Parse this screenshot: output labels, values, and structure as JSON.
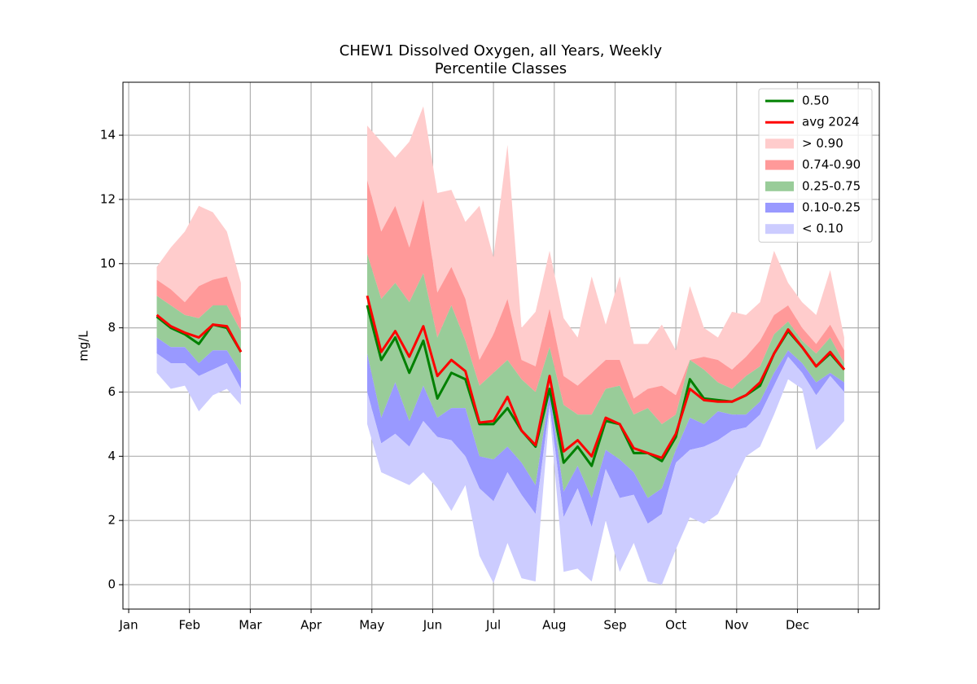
{
  "chart_data": {
    "type": "band-line",
    "title": "CHEW1 Dissolved Oxygen, all Years, Weekly",
    "subtitle": "Percentile Classes",
    "y_label": "mg/L",
    "x": [
      2,
      3,
      4,
      5,
      6,
      7,
      8,
      9,
      10,
      11,
      12,
      13,
      14,
      15,
      16,
      17,
      18,
      19,
      20,
      21,
      22,
      23,
      24,
      25,
      26,
      27,
      28,
      29,
      30,
      31,
      32,
      33,
      34,
      35,
      36,
      37,
      38,
      39,
      40,
      41,
      42,
      43,
      44,
      45,
      46,
      47,
      48,
      49,
      50,
      51
    ],
    "xlim": [
      -0.41,
      53.5
    ],
    "xticks": [
      {
        "value": 0,
        "label": "Jan"
      },
      {
        "value": 4.333,
        "label": "Feb"
      },
      {
        "value": 8.667,
        "label": "Mar"
      },
      {
        "value": 13,
        "label": "Apr"
      },
      {
        "value": 17.333,
        "label": "May"
      },
      {
        "value": 21.667,
        "label": "Jun"
      },
      {
        "value": 26,
        "label": "Jul"
      },
      {
        "value": 30.333,
        "label": "Aug"
      },
      {
        "value": 34.667,
        "label": "Sep"
      },
      {
        "value": 39,
        "label": "Oct"
      },
      {
        "value": 43.333,
        "label": "Nov"
      },
      {
        "value": 47.667,
        "label": "Dec"
      },
      {
        "value": 52,
        "label": null
      }
    ],
    "ylim": [
      -0.76,
      15.65
    ],
    "yticks": [
      0,
      2,
      4,
      6,
      8,
      10,
      12,
      14
    ],
    "grid": true,
    "legend": "upper right",
    "series": [
      {
        "name": "0.50",
        "color": "#008000",
        "values": [
          8.35,
          8.0,
          7.8,
          7.5,
          8.1,
          8.0,
          7.25,
          null,
          null,
          null,
          null,
          null,
          null,
          null,
          null,
          8.7,
          7.0,
          7.7,
          6.6,
          7.6,
          5.8,
          6.6,
          6.4,
          5.0,
          5.0,
          5.5,
          4.8,
          4.3,
          6.1,
          3.8,
          4.3,
          3.7,
          5.1,
          5.0,
          4.1,
          4.1,
          3.85,
          4.6,
          6.4,
          5.8,
          5.75,
          5.7,
          5.9,
          6.2,
          7.2,
          7.9,
          7.4,
          6.8,
          7.2,
          6.7
        ]
      },
      {
        "name": "avg 2024",
        "color": "#ff0000",
        "values": [
          8.4,
          8.05,
          7.85,
          7.7,
          8.1,
          8.05,
          7.25,
          null,
          null,
          null,
          null,
          null,
          null,
          null,
          null,
          9.0,
          7.25,
          7.9,
          7.1,
          8.05,
          6.5,
          7.0,
          6.65,
          5.05,
          5.1,
          5.85,
          4.8,
          4.35,
          6.5,
          4.15,
          4.5,
          4.0,
          5.2,
          5.0,
          4.25,
          4.1,
          3.95,
          4.7,
          6.1,
          5.75,
          5.7,
          5.7,
          5.9,
          6.3,
          7.2,
          7.95,
          7.4,
          6.8,
          7.25,
          6.7
        ]
      }
    ],
    "bands": [
      {
        "name": "> 0.90",
        "color": "#ffcccc",
        "low": [
          9.5,
          9.2,
          8.8,
          9.3,
          9.5,
          9.6,
          8.3,
          null,
          null,
          null,
          null,
          null,
          null,
          null,
          null,
          12.6,
          11.0,
          11.8,
          10.5,
          12.0,
          9.1,
          9.9,
          8.9,
          7.0,
          7.8,
          8.9,
          7.0,
          6.8,
          8.6,
          6.5,
          6.2,
          6.6,
          7.0,
          7.0,
          5.8,
          6.1,
          6.2,
          5.9,
          7.0,
          7.1,
          7.0,
          6.7,
          7.1,
          7.6,
          8.4,
          8.7,
          8.0,
          7.5,
          8.1,
          7.3
        ],
        "high": [
          9.9,
          10.5,
          11.0,
          11.8,
          11.6,
          11.0,
          9.4,
          null,
          null,
          null,
          null,
          null,
          null,
          null,
          null,
          14.3,
          13.8,
          13.3,
          13.8,
          14.9,
          12.2,
          12.3,
          11.3,
          11.8,
          10.2,
          13.7,
          8.0,
          8.5,
          10.4,
          8.3,
          7.7,
          9.6,
          8.1,
          9.6,
          7.5,
          7.5,
          8.1,
          7.3,
          9.3,
          8.0,
          7.7,
          8.5,
          8.4,
          8.8,
          10.4,
          9.4,
          8.8,
          8.4,
          9.8,
          7.7
        ]
      },
      {
        "name": "0.74-0.90",
        "color": "#ff9999",
        "low": [
          9.0,
          8.7,
          8.4,
          8.3,
          8.7,
          8.7,
          7.9,
          null,
          null,
          null,
          null,
          null,
          null,
          null,
          null,
          10.3,
          8.9,
          9.4,
          8.8,
          9.7,
          7.7,
          8.7,
          7.6,
          6.2,
          6.6,
          7.0,
          6.4,
          6.0,
          7.4,
          5.6,
          5.3,
          5.3,
          6.1,
          6.2,
          5.3,
          5.5,
          5.0,
          5.3,
          7.0,
          6.7,
          6.3,
          6.1,
          6.5,
          6.8,
          7.8,
          8.2,
          7.6,
          7.2,
          7.7,
          6.9
        ],
        "high": [
          9.5,
          9.2,
          8.8,
          9.3,
          9.5,
          9.6,
          8.3,
          null,
          null,
          null,
          null,
          null,
          null,
          null,
          null,
          12.6,
          11.0,
          11.8,
          10.5,
          12.0,
          9.1,
          9.9,
          8.9,
          7.0,
          7.8,
          8.9,
          7.0,
          6.8,
          8.6,
          6.5,
          6.2,
          6.6,
          7.0,
          7.0,
          5.8,
          6.1,
          6.2,
          5.9,
          7.0,
          7.1,
          7.0,
          6.7,
          7.1,
          7.6,
          8.4,
          8.7,
          8.0,
          7.5,
          8.1,
          7.3
        ]
      },
      {
        "name": "0.25-0.75",
        "color": "#99cc99",
        "low": [
          7.7,
          7.4,
          7.4,
          6.9,
          7.3,
          7.3,
          6.6,
          null,
          null,
          null,
          null,
          null,
          null,
          null,
          null,
          7.2,
          5.2,
          6.3,
          5.1,
          6.2,
          5.2,
          5.5,
          5.5,
          4.0,
          3.9,
          4.3,
          3.8,
          3.1,
          6.0,
          2.9,
          3.7,
          2.7,
          4.2,
          3.9,
          3.5,
          2.7,
          3.0,
          4.2,
          5.2,
          5.0,
          5.4,
          5.3,
          5.3,
          5.7,
          6.6,
          7.3,
          6.9,
          6.3,
          6.6,
          6.3
        ],
        "high": [
          9.0,
          8.7,
          8.4,
          8.3,
          8.7,
          8.7,
          7.9,
          null,
          null,
          null,
          null,
          null,
          null,
          null,
          null,
          10.3,
          8.9,
          9.4,
          8.8,
          9.7,
          7.7,
          8.7,
          7.6,
          6.2,
          6.6,
          7.0,
          6.4,
          6.0,
          7.4,
          5.6,
          5.3,
          5.3,
          6.1,
          6.2,
          5.3,
          5.5,
          5.0,
          5.3,
          7.0,
          6.7,
          6.3,
          6.1,
          6.5,
          6.8,
          7.8,
          8.2,
          7.6,
          7.2,
          7.7,
          6.9
        ]
      },
      {
        "name": "0.10-0.25",
        "color": "#9999ff",
        "low": [
          7.2,
          6.9,
          6.9,
          6.5,
          6.7,
          6.9,
          6.1,
          null,
          null,
          null,
          null,
          null,
          null,
          null,
          null,
          6.0,
          4.4,
          4.7,
          4.3,
          5.1,
          4.6,
          4.5,
          4.0,
          3.0,
          2.6,
          3.5,
          2.8,
          2.2,
          5.6,
          2.1,
          3.0,
          1.8,
          3.6,
          2.7,
          2.8,
          1.9,
          2.2,
          3.8,
          4.2,
          4.3,
          4.5,
          4.8,
          4.9,
          5.3,
          6.2,
          7.1,
          6.6,
          5.9,
          6.5,
          6.0
        ],
        "high": [
          7.7,
          7.4,
          7.4,
          6.9,
          7.3,
          7.3,
          6.6,
          null,
          null,
          null,
          null,
          null,
          null,
          null,
          null,
          7.2,
          5.2,
          6.3,
          5.1,
          6.2,
          5.2,
          5.5,
          5.5,
          4.0,
          3.9,
          4.3,
          3.8,
          3.1,
          6.0,
          2.9,
          3.7,
          2.7,
          4.2,
          3.9,
          3.5,
          2.7,
          3.0,
          4.2,
          5.2,
          5.0,
          5.4,
          5.3,
          5.3,
          5.7,
          6.6,
          7.3,
          6.9,
          6.3,
          6.6,
          6.3
        ]
      },
      {
        "name": "< 0.10",
        "color": "#ccccff",
        "low": [
          6.6,
          6.1,
          6.2,
          5.4,
          5.9,
          6.1,
          5.6,
          null,
          null,
          null,
          null,
          null,
          null,
          null,
          null,
          5.0,
          3.5,
          3.3,
          3.1,
          3.5,
          3.0,
          2.3,
          3.1,
          0.9,
          0.05,
          1.3,
          0.2,
          0.1,
          5.4,
          0.4,
          0.5,
          0.1,
          2.0,
          0.4,
          1.3,
          0.1,
          0.0,
          1.1,
          2.1,
          1.9,
          2.2,
          3.1,
          4.0,
          4.3,
          5.3,
          6.4,
          6.1,
          4.2,
          4.6,
          5.1
        ],
        "high": [
          7.2,
          6.9,
          6.9,
          6.5,
          6.7,
          6.9,
          6.1,
          null,
          null,
          null,
          null,
          null,
          null,
          null,
          null,
          6.0,
          4.4,
          4.7,
          4.3,
          5.1,
          4.6,
          4.5,
          4.0,
          3.0,
          2.6,
          3.5,
          2.8,
          2.2,
          5.6,
          2.1,
          3.0,
          1.8,
          3.6,
          2.7,
          2.8,
          1.9,
          2.2,
          3.8,
          4.2,
          4.3,
          4.5,
          4.8,
          4.9,
          5.3,
          6.2,
          7.1,
          6.6,
          5.9,
          6.5,
          6.0
        ]
      }
    ]
  }
}
